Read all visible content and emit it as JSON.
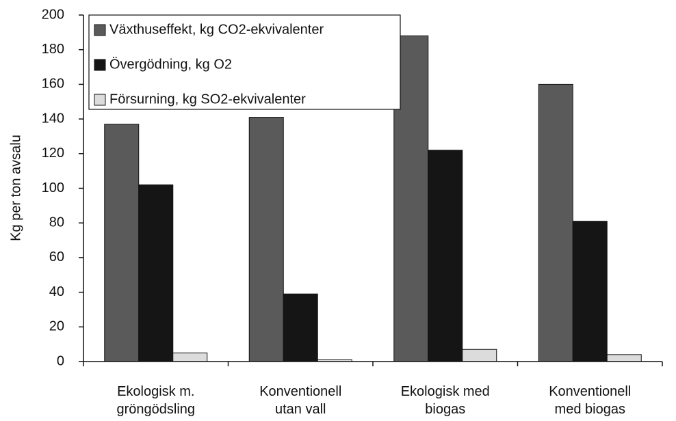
{
  "chart_data": {
    "type": "bar",
    "ylabel": "Kg per ton avsalu",
    "categories": [
      "Ekologisk m.\ngröngödsling",
      "Konventionell\nutan vall",
      "Ekologisk med\nbiogas",
      "Konventionell\nmed biogas"
    ],
    "series": [
      {
        "name": "Växthuseffekt, kg CO2-ekvivalenter",
        "color": "#5a5a5a",
        "values": [
          137,
          141,
          188,
          160
        ]
      },
      {
        "name": "Övergödning, kg O2",
        "color": "#151515",
        "values": [
          102,
          39,
          122,
          81
        ]
      },
      {
        "name": "Försurning, kg SO2-ekvivalenter",
        "color": "#dcdcdc",
        "values": [
          5,
          1,
          7,
          4
        ]
      }
    ],
    "ylim": [
      0,
      200
    ],
    "yticks": [
      0,
      20,
      40,
      60,
      80,
      100,
      120,
      140,
      160,
      180,
      200
    ],
    "legend": "upper left"
  }
}
